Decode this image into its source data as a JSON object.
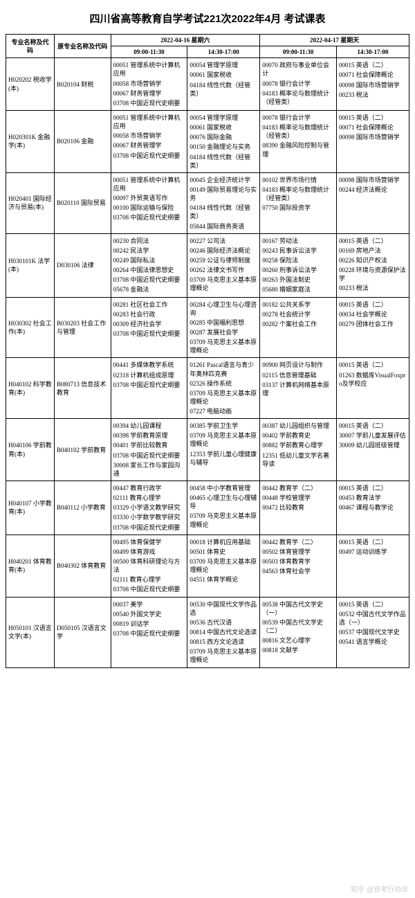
{
  "title": "四川省高等教育自学考试221次2022年4月 考试课表",
  "header": {
    "major": "专业名称及代码",
    "orig": "原专业名称及代码",
    "day1": "2022-04-16 星期六",
    "day2": "2022-04-17 星期天",
    "slot1": "09:00-11:30",
    "slot2": "14:30-17:00",
    "slot3": "09:00-11:30",
    "slot4": "14:30-17:00"
  },
  "rows": [
    {
      "major": "H020202 税收学(本)",
      "orig": "B020104 财税",
      "s1": [
        "00051 管理系统中计算机应用",
        "00058 市场营销学",
        "00067 财务管理学",
        "03708 中国近现代史纲要"
      ],
      "s2": [
        "00054 管理学原理",
        "00061 国家税收",
        "04184 线性代数（经管类）"
      ],
      "s3": [
        "00070 政府与事业单位会计",
        "00078 银行会计学",
        "04183 概率论与数理统计（经管类）"
      ],
      "s4": [
        "00015 英语（二）",
        "00071 社会保障概论",
        "00098 国际市场营销学",
        "00233 税法"
      ]
    },
    {
      "major": "H020301K 金融学(本)",
      "orig": "B020106 金融",
      "s1": [
        "00051 管理系统中计算机应用",
        "00058 市场营销学",
        "00067 财务管理学",
        "03708 中国近现代史纲要"
      ],
      "s2": [
        "00054 管理学原理",
        "00061 国家税收",
        "00076 国际金融",
        "00150 金融理论与实务",
        "04184 线性代数（经管类）"
      ],
      "s3": [
        "00078 银行会计学",
        "04183 概率论与数理统计（经管类）",
        "08390 金融风险控制与管理"
      ],
      "s4": [
        "00015 英语（二）",
        "00071 社会保障概论",
        "00098 国际市场营销学"
      ]
    },
    {
      "major": "H020401 国际经济与贸易(本)",
      "orig": "B020110 国际贸易",
      "s1": [
        "00051 管理系统中计算机应用",
        "00097 外贸英语写作",
        "00100 国际运输与保险",
        "03708 中国近现代史纲要"
      ],
      "s2": [
        "00045 企业经济统计学",
        "00149 国际贸易理论与实务",
        "04184 线性代数（经管类）",
        "05844 国际商务英语"
      ],
      "s3": [
        "00102 世界市场行情",
        "04183 概率论与数理统计（经管类）",
        "07750 国际投资学"
      ],
      "s4": [
        "00098 国际市场营销学",
        "00244 经济法概论"
      ]
    },
    {
      "major": "H030101K 法学(本)",
      "orig": "D030106 法律",
      "s1": [
        "00230 合同法",
        "00242 民法学",
        "00249 国际私法",
        "00264 中国法律思想史",
        "03708 中国近现代史纲要",
        "05678 金融法"
      ],
      "s2": [
        "00227 公司法",
        "00246 国际经济法概论",
        "00259 公证与律师制度",
        "00262 法律文书写作",
        "03709 马克思主义基本原理概论"
      ],
      "s3": [
        "00167 劳动法",
        "00243 民事诉讼法学",
        "00258 保险法",
        "00260 刑事诉讼法学",
        "00263 外国法制史",
        "05680 婚姻家庭法"
      ],
      "s4": [
        "00015 英语（二）",
        "00169 房地产法",
        "00226 知识产权法",
        "00228 环境与资源保护法学",
        "00233 税法"
      ]
    },
    {
      "major": "H030302 社会工作(本)",
      "orig": "B030203 社会工作与管理",
      "s1": [
        "00281 社区社会工作",
        "00283 社会行政",
        "00309 经济社会学",
        "03708 中国近现代史纲要"
      ],
      "s2": [
        "00284 心理卫生与心理咨询",
        "00285 中国福利思想",
        "00287 发展社会学",
        "03709 马克思主义基本原理概论"
      ],
      "s3": [
        "00182 公共关系学",
        "00278 社会统计学",
        "00282 个案社会工作"
      ],
      "s4": [
        "00015 英语（二）",
        "00034 社会学概论",
        "00279 团体社会工作"
      ]
    },
    {
      "major": "H040102 科学教育(本)",
      "orig": "B080713 信息技术教育",
      "s1": [
        "00441 多媒体教学系统",
        "02318 计算机组成原理",
        "03708 中国近现代史纲要"
      ],
      "s2": [
        "01261 Pascal语言与青少年奥林匹克赛",
        "02326 操作系统",
        "03709 马克思主义基本原理概论",
        "07227 电脑动画"
      ],
      "s3": [
        "00900 网页设计与制作",
        "02115 信息管理基础",
        "03137 计算机网络基本原理"
      ],
      "s4": [
        "00015 英语（二）",
        "01263 数据库VisualFoxpro及学校应"
      ]
    },
    {
      "major": "H040106 学前教育(本)",
      "orig": "B040102 学前教育",
      "s1": [
        "00394 幼儿园课程",
        "00398 学前教育原理",
        "00401 学前比较教育",
        "03708 中国近现代史纲要",
        "30008 家长工作与家园沟通"
      ],
      "s2": [
        "00385 学前卫生学",
        "03709 马克思主义基本原理概论",
        "12353 学前儿童心理健康与辅导"
      ],
      "s3": [
        "00387 幼儿园组织与管理",
        "00402 学前教育史",
        "00882 学前教育心理学",
        "12351 低幼儿童文学名著导读"
      ],
      "s4": [
        "00015 英语（二）",
        "30007 学前儿童发展评估",
        "30009 幼儿园班级管理"
      ]
    },
    {
      "major": "H040107 小学教育(本)",
      "orig": "B040112 小学教育",
      "s1": [
        "00447 教育行政学",
        "02111 教育心理学",
        "03329 小学语文教学研究",
        "03330 小学数学教学研究",
        "03708 中国近现代史纲要"
      ],
      "s2": [
        "00458 中小学教育管理",
        "00465 心理卫生与心理辅导",
        "03709 马克思主义基本原理概论"
      ],
      "s3": [
        "00442 教育学（二）",
        "00448 学校管理学",
        "00472 比较教育"
      ],
      "s4": [
        "00015 英语（二）",
        "00453 教育法学",
        "00467 课程与教学论"
      ]
    },
    {
      "major": "H040201 体育教育(本)",
      "orig": "B040302 体育教育",
      "s1": [
        "00495 体育保健学",
        "00499 体育游戏",
        "00500 体育科研理论与方法",
        "02111 教育心理学",
        "03708 中国近现代史纲要"
      ],
      "s2": [
        "00018 计算机应用基础",
        "00501 体育史",
        "03709 马克思主义基本原理概论",
        "04551 体育学概论"
      ],
      "s3": [
        "00442 教育学（二）",
        "00502 体育管理学",
        "00503 体育教育学",
        "04563 体育社会学"
      ],
      "s4": [
        "00015 英语（二）",
        "00497 运动训练学"
      ]
    },
    {
      "major": "H050101 汉语言文学(本)",
      "orig": "D050105 汉语言文学",
      "s1": [
        "00037 美学",
        "00540 外国文学史",
        "00819 训诂学",
        "03708 中国近现代史纲要"
      ],
      "s2": [
        "00530 中国现代文学作品选",
        "00536 古代汉语",
        "00814 中国古代文论选读",
        "00815 西方文论选读",
        "03709 马克思主义基本原理概论"
      ],
      "s3": [
        "00538 中国古代文学史（一）",
        "00539 中国古代文学史（二）",
        "00816 文艺心理学",
        "00818 文献学"
      ],
      "s4": [
        "00015 英语（二）",
        "00532 中国古代文学作品选（一）",
        "00537 中国现代文学史",
        "00541 语言学概论"
      ]
    }
  ],
  "watermark": "知乎 @自考行动派"
}
